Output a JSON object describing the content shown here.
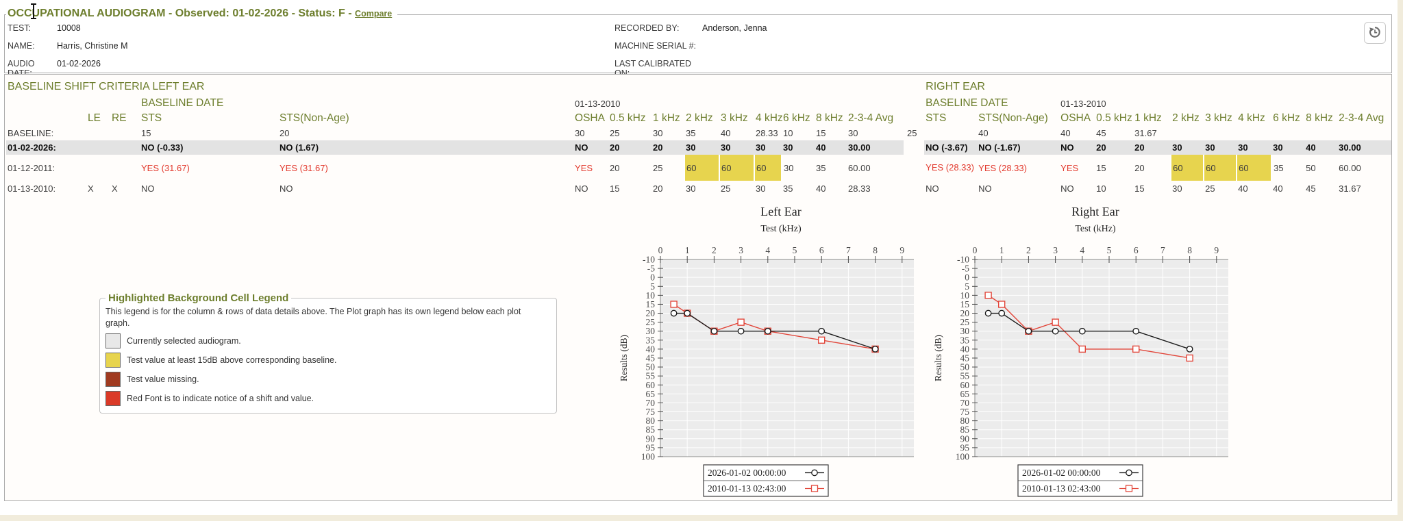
{
  "colors": {
    "accent_olive": "#6d7e2d",
    "selected_row_bg": "#e3e3e3",
    "shift_yellow": "#e7d44e",
    "missing_dark_red": "#a03b21",
    "red_font": "#e2382c",
    "page_background": "#f1ecdc",
    "chart_plot_bg": "#ececec"
  },
  "header": {
    "title": "OCCUPATIONAL AUDIOGRAM - Observed: 01-02-2026 - Status: F -",
    "compare_label": "Compare",
    "history_button_icon": "history-restore-icon",
    "info_left": [
      {
        "label": "TEST:",
        "value": "10008"
      },
      {
        "label": "NAME:",
        "value": "Harris, Christine M"
      },
      {
        "label": "AUDIO DATE:",
        "value": "01-02-2026"
      }
    ],
    "info_right": [
      {
        "label": "RECORDED BY:",
        "value": "Anderson, Jenna"
      },
      {
        "label": "MACHINE SERIAL #:",
        "value": ""
      },
      {
        "label": "LAST CALIBRATED ON:",
        "value": ""
      }
    ]
  },
  "cursor_icon": "i-beam-text-cursor",
  "criteria": {
    "section_label": "BASELINE SHIFT CRITERIA",
    "left_ear_label": "LEFT EAR",
    "right_ear_label": "RIGHT EAR",
    "baseline_date_label": "BASELINE DATE",
    "left_baseline_date": "01-13-2010",
    "right_baseline_date": "01-13-2010",
    "flag_columns": [
      "LE",
      "RE"
    ],
    "ear_columns": [
      "STS",
      "STS(Non-Age)",
      "OSHA",
      "0.5 kHz",
      "1 kHz",
      "2 kHz",
      "3 kHz",
      "4 kHz",
      "6 kHz",
      "8 kHz",
      "2-3-4 Avg"
    ],
    "rows": [
      {
        "label": "BASELINE:",
        "le": "",
        "re": "",
        "selected": false,
        "shift": false,
        "left": [
          "15",
          "20",
          "30",
          "25",
          "30",
          "35",
          "40",
          "28.33",
          "10",
          "15",
          "30"
        ],
        "between": "25",
        "right": [
          "",
          "40",
          "40",
          "45",
          "31.67",
          "",
          "",
          "",
          "",
          "",
          ""
        ]
      },
      {
        "label": "01-02-2026:",
        "le": "",
        "re": "",
        "selected": true,
        "shift": false,
        "left": [
          "NO (-0.33)",
          "NO (1.67)",
          "NO",
          "20",
          "20",
          "30",
          "30",
          "30",
          "30",
          "40",
          "30.00"
        ],
        "between": "",
        "right": [
          "NO (-3.67)",
          "NO (-1.67)",
          "NO",
          "20",
          "20",
          "30",
          "30",
          "30",
          "30",
          "40",
          "30.00"
        ]
      },
      {
        "label": "01-12-2011:",
        "le": "",
        "re": "",
        "selected": false,
        "shift": true,
        "left": [
          "YES (31.67)",
          "YES (31.67)",
          "YES",
          "20",
          "25",
          "60",
          "60",
          "60",
          "30",
          "35",
          "60.00"
        ],
        "between": "",
        "right": [
          "YES (28.33)",
          "YES (28.33)",
          "YES",
          "15",
          "20",
          "60",
          "60",
          "60",
          "35",
          "50",
          "60.00"
        ],
        "highlight15": [
          5,
          6,
          7
        ]
      },
      {
        "label": "01-13-2010:",
        "le": "X",
        "re": "X",
        "selected": false,
        "shift": false,
        "left": [
          "NO",
          "NO",
          "NO",
          "15",
          "20",
          "30",
          "25",
          "30",
          "35",
          "40",
          "28.33"
        ],
        "between": "",
        "right": [
          "NO",
          "NO",
          "NO",
          "10",
          "15",
          "30",
          "25",
          "40",
          "40",
          "45",
          "31.67"
        ]
      }
    ]
  },
  "cell_legend": {
    "title": "Highlighted Background Cell Legend",
    "description": "This legend is for the column & rows of data details above. The Plot graph has its own legend below each plot graph.",
    "items": [
      {
        "color": "#e8e8e8",
        "label": "Currently selected audiogram."
      },
      {
        "color": "#e7d44e",
        "label": "Test value at least 15dB above corresponding baseline."
      },
      {
        "color": "#a03b21",
        "label": "Test value missing."
      },
      {
        "color": "#da3a28",
        "label": "Red Font is to indicate notice of a shift and value."
      }
    ]
  },
  "chart_data": [
    {
      "type": "line",
      "title": "Left Ear",
      "xlabel": "Test (kHz)",
      "ylabel": "Results (dB)",
      "x_ticks": [
        0,
        1,
        2,
        3,
        4,
        5,
        6,
        7,
        8,
        9
      ],
      "xlim": [
        0,
        9.4
      ],
      "ylim": [
        -10,
        100
      ],
      "y_step": 5,
      "y_inverted": true,
      "grid": true,
      "legend_position": "bottom",
      "series": [
        {
          "name": "2026-01-02 00:00:00",
          "color": "#1a1a1a",
          "marker": "circle",
          "x": [
            0.5,
            1,
            2,
            3,
            4,
            6,
            8
          ],
          "y": [
            20,
            20,
            30,
            30,
            30,
            30,
            40
          ]
        },
        {
          "name": "2010-01-13 02:43:00",
          "color": "#e2463a",
          "marker": "square",
          "x": [
            0.5,
            1,
            2,
            3,
            4,
            6,
            8
          ],
          "y": [
            15,
            20,
            30,
            25,
            30,
            35,
            40
          ]
        }
      ]
    },
    {
      "type": "line",
      "title": "Right Ear",
      "xlabel": "Test (kHz)",
      "ylabel": "Results (dB)",
      "x_ticks": [
        0,
        1,
        2,
        3,
        4,
        5,
        6,
        7,
        8,
        9
      ],
      "xlim": [
        0,
        9.4
      ],
      "ylim": [
        -10,
        100
      ],
      "y_step": 5,
      "y_inverted": true,
      "grid": true,
      "legend_position": "bottom",
      "series": [
        {
          "name": "2026-01-02 00:00:00",
          "color": "#1a1a1a",
          "marker": "circle",
          "x": [
            0.5,
            1,
            2,
            3,
            4,
            6,
            8
          ],
          "y": [
            20,
            20,
            30,
            30,
            30,
            30,
            40
          ]
        },
        {
          "name": "2010-01-13 02:43:00",
          "color": "#e2463a",
          "marker": "square",
          "x": [
            0.5,
            1,
            2,
            3,
            4,
            6,
            8
          ],
          "y": [
            10,
            15,
            30,
            25,
            40,
            40,
            45
          ]
        }
      ]
    }
  ]
}
